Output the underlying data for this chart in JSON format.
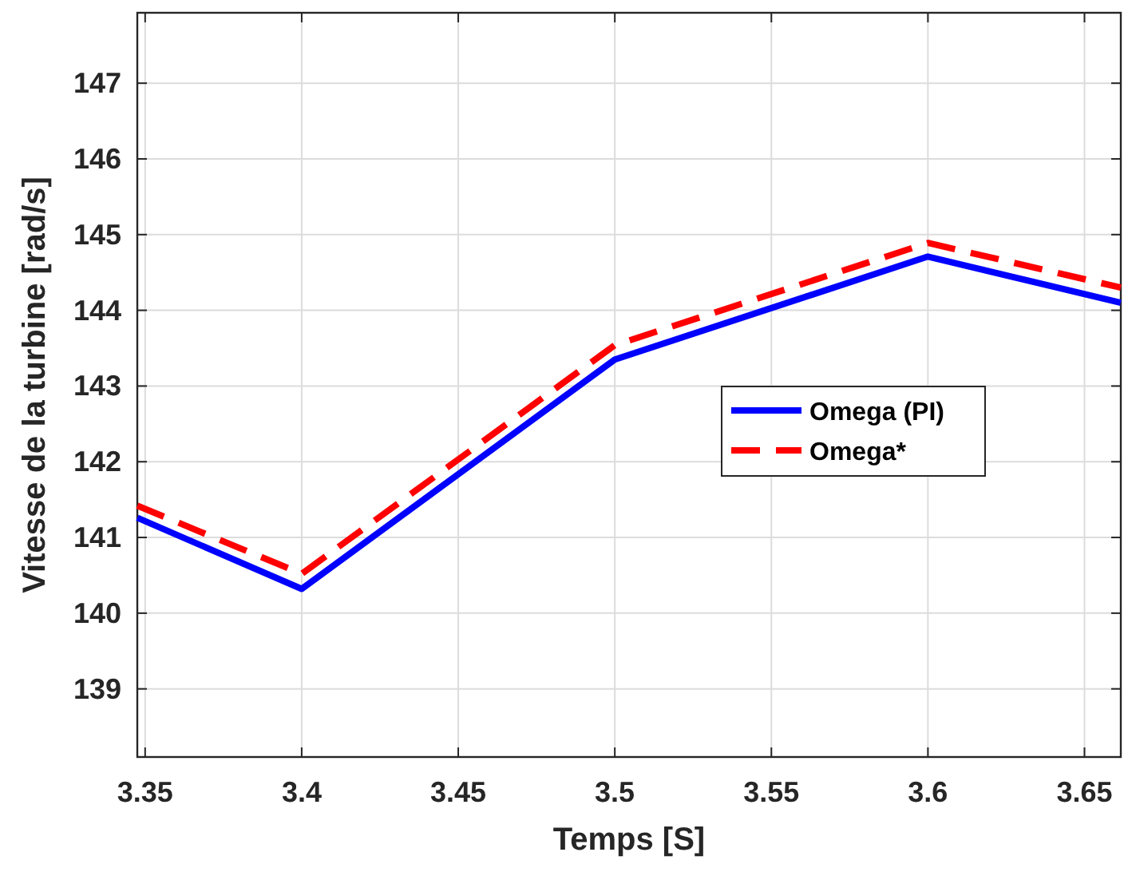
{
  "chart_data": {
    "type": "line",
    "xlabel": "Temps [S]",
    "ylabel": "Vitesse de la turbine [rad/s]",
    "xlim": [
      3.3475,
      3.6616
    ],
    "xticks": [
      {
        "value": 3.35,
        "label": "3.35"
      },
      {
        "value": 3.4,
        "label": "3.4"
      },
      {
        "value": 3.45,
        "label": "3.45"
      },
      {
        "value": 3.5,
        "label": "3.5"
      },
      {
        "value": 3.55,
        "label": "3.55"
      },
      {
        "value": 3.6,
        "label": "3.6"
      },
      {
        "value": 3.65,
        "label": "3.65"
      }
    ],
    "ylim": [
      138.1,
      147.93
    ],
    "yticks": [
      139,
      140,
      141,
      142,
      143,
      144,
      145,
      146,
      147
    ],
    "grid": true,
    "legend": "right",
    "marker": "none",
    "series": [
      {
        "name": "Omega (PI)",
        "color": "#0000ff",
        "line_style": "solid",
        "x": [
          3.3475,
          3.4,
          3.5,
          3.6,
          3.6616
        ],
        "values": [
          141.26,
          140.32,
          143.35,
          144.71,
          144.1
        ]
      },
      {
        "name": "Omega*",
        "color": "#ff0000",
        "line_style": "dashed",
        "x": [
          3.3475,
          3.4,
          3.5,
          3.6,
          3.6616
        ],
        "values": [
          141.42,
          140.52,
          143.54,
          144.89,
          144.3
        ]
      }
    ]
  }
}
